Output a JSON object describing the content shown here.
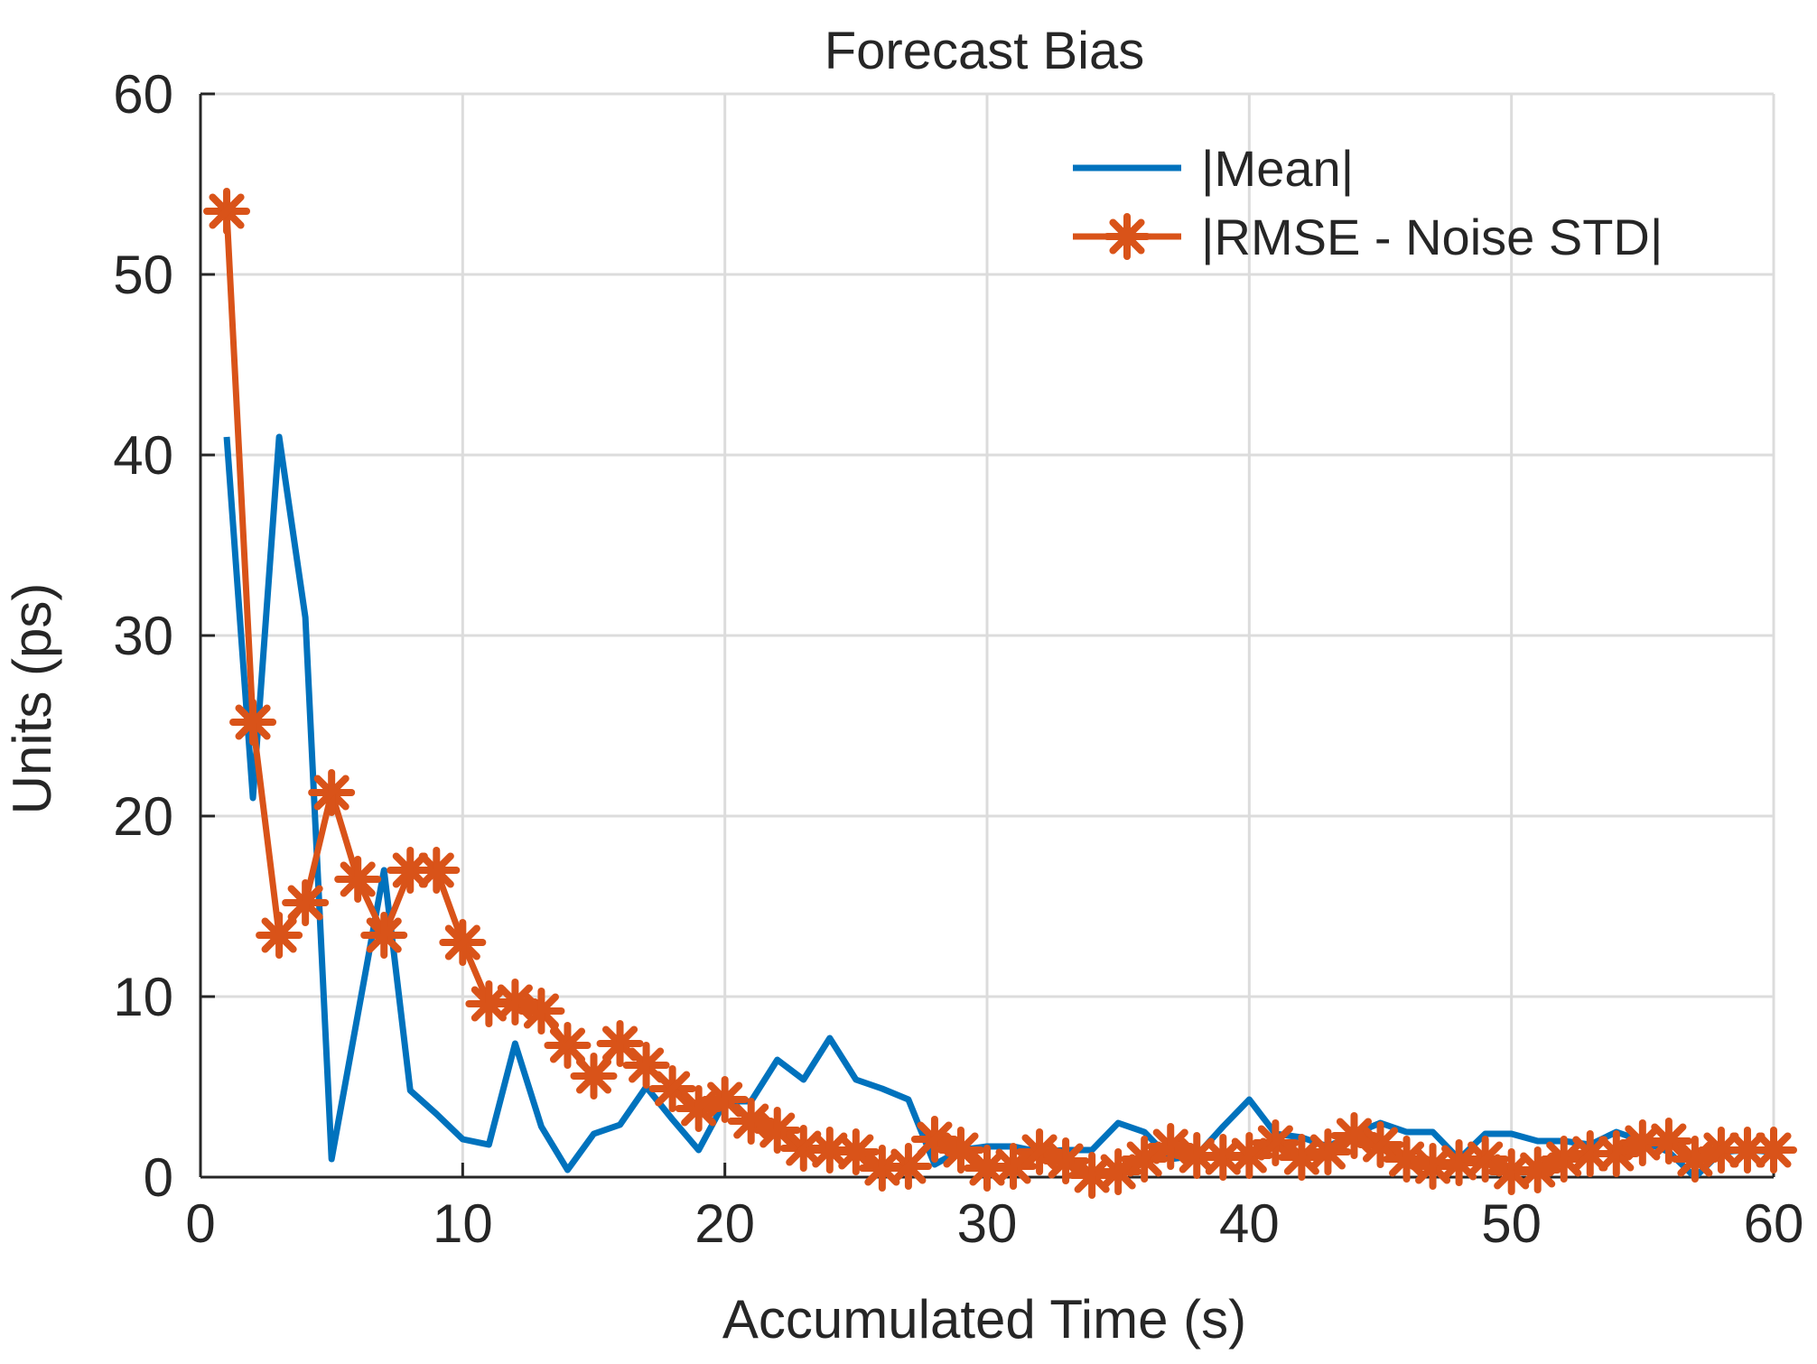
{
  "chart_data": {
    "type": "line",
    "title": "Forecast Bias",
    "xlabel": "Accumulated Time (s)",
    "ylabel": "Units (ps)",
    "xlim": [
      0,
      60
    ],
    "ylim": [
      0,
      60
    ],
    "xticks": [
      0,
      10,
      20,
      30,
      40,
      50,
      60
    ],
    "yticks": [
      0,
      10,
      20,
      30,
      40,
      50,
      60
    ],
    "grid": true,
    "legend_position": "top-right",
    "x": [
      1,
      2,
      3,
      4,
      5,
      6,
      7,
      8,
      9,
      10,
      11,
      12,
      13,
      14,
      15,
      16,
      17,
      18,
      19,
      20,
      21,
      22,
      23,
      24,
      25,
      26,
      27,
      28,
      29,
      30,
      31,
      32,
      33,
      34,
      35,
      36,
      37,
      38,
      39,
      40,
      41,
      42,
      43,
      44,
      45,
      46,
      47,
      48,
      49,
      50,
      51,
      52,
      53,
      54,
      55,
      56,
      57,
      58,
      59,
      60
    ],
    "series": [
      {
        "name": "|Mean|",
        "color": "#0072BD",
        "marker": "none",
        "values": [
          41,
          21,
          41,
          31,
          1,
          9,
          17,
          4.8,
          3.5,
          2.1,
          1.8,
          7.4,
          2.8,
          0.4,
          2.4,
          2.9,
          5,
          3.2,
          1.5,
          4.2,
          4.2,
          6.5,
          5.4,
          7.7,
          5.4,
          4.9,
          4.3,
          0.7,
          1.5,
          1.7,
          1.7,
          1.4,
          1.5,
          1.5,
          3,
          2.5,
          1,
          1.2,
          2.8,
          4.3,
          2.4,
          2.2,
          1.7,
          2.4,
          3,
          2.5,
          2.5,
          1,
          2.4,
          2.4,
          2,
          2,
          1.8,
          2.5,
          2,
          1.4,
          0,
          1.4,
          1.5,
          1.4
        ]
      },
      {
        "name": "|RMSE - Noise STD|",
        "color": "#D95319",
        "marker": "asterisk",
        "values": [
          53.5,
          25.2,
          13.4,
          15.2,
          21.3,
          16.5,
          13.4,
          17,
          17,
          13,
          9.6,
          9.7,
          9.2,
          7.3,
          5.6,
          7.4,
          6.2,
          4.9,
          3.8,
          4.3,
          3.1,
          2.6,
          1.6,
          1.5,
          1.4,
          0.5,
          0.6,
          2.1,
          1.5,
          0.5,
          0.6,
          1.4,
          0.9,
          0.1,
          0.3,
          1,
          1.7,
          1.2,
          1.1,
          1.2,
          1.9,
          1.1,
          1.4,
          2.3,
          1.8,
          1,
          0.6,
          0.8,
          1,
          0.3,
          0.4,
          1,
          1.3,
          1.3,
          1.9,
          2,
          1,
          1.5,
          1.5,
          1.5
        ]
      }
    ]
  }
}
